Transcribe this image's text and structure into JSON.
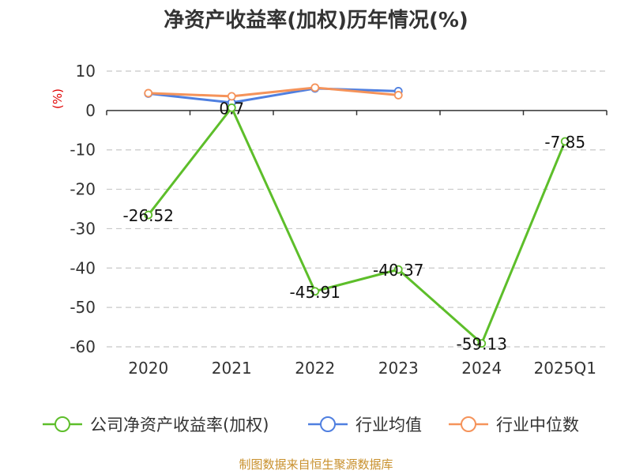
{
  "chart_data": {
    "type": "line",
    "title": "净资产收益率(加权)历年情况(%)",
    "ylabel": "(%)",
    "xlabel": "",
    "categories": [
      "2020",
      "2021",
      "2022",
      "2023",
      "2024",
      "2025Q1"
    ],
    "ylim": [
      -60,
      10
    ],
    "yticks": [
      10,
      0,
      -10,
      -20,
      -30,
      -40,
      -50,
      -60
    ],
    "grid": true,
    "legend_position": "bottom",
    "series": [
      {
        "name": "公司净资产收益率(加权)",
        "color": "#5dbe2a",
        "values": [
          -26.52,
          0.7,
          -45.91,
          -40.37,
          -59.13,
          -7.85
        ],
        "labels": [
          "-26.52",
          "0.7",
          "-45.91",
          "-40.37",
          "-59.13",
          "-7.85"
        ]
      },
      {
        "name": "行业均值",
        "color": "#4f7fe0",
        "values": [
          4.3,
          2.0,
          5.6,
          4.9,
          null,
          null
        ]
      },
      {
        "name": "行业中位数",
        "color": "#f5935a",
        "values": [
          4.4,
          3.6,
          5.8,
          3.9,
          null,
          null
        ]
      }
    ]
  },
  "source": "制图数据来自恒生聚源数据库"
}
